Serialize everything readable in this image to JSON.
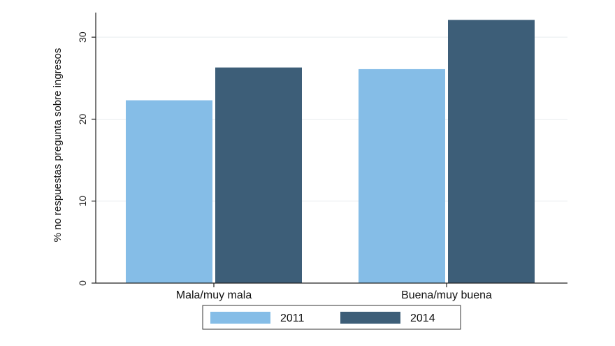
{
  "chart_data": {
    "type": "bar",
    "title": "",
    "xlabel": "",
    "ylabel": "% no respuestas pregunta sobre ingresos",
    "categories": [
      "Mala/muy mala",
      "Buena/muy buena"
    ],
    "series": [
      {
        "name": "2011",
        "values": [
          22.3,
          26.1
        ],
        "color": "#85bde7"
      },
      {
        "name": "2014",
        "values": [
          26.3,
          32.1
        ],
        "color": "#3d5e78"
      }
    ],
    "ylim": [
      0,
      33
    ],
    "yticks": [
      "0",
      "10",
      "20",
      "30"
    ],
    "grid": true,
    "legend_position": "bottom"
  }
}
